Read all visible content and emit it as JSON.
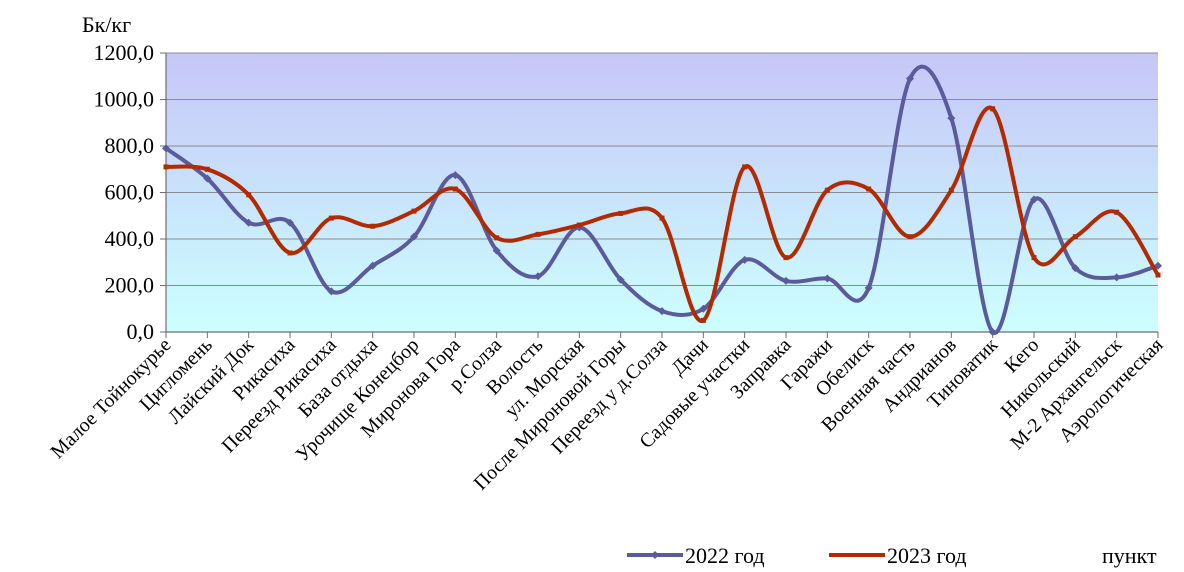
{
  "chart_data": {
    "type": "line",
    "smooth": true,
    "y_unit_label": "Бк/кг",
    "x_unit_label": "пункт",
    "ylim": [
      0,
      1200
    ],
    "yticks": [
      0,
      200,
      400,
      600,
      800,
      1000,
      1200
    ],
    "ytick_labels": [
      "0,0",
      "200,0",
      "400,0",
      "600,0",
      "800,0",
      "1000,0",
      "1200,0"
    ],
    "grid": true,
    "legend_position": "bottom",
    "background_gradient": [
      "#c6c6f7",
      "#ccffff"
    ],
    "categories": [
      "Малое Тойнокурье",
      "Цигломень",
      "Лайский Док",
      "Рикасиха",
      "Переезд Рикасиха",
      "База отдыха",
      "Урочище Конецбор",
      "Миронова Гора",
      "р.Солза",
      "Волость",
      "ул. Морская",
      "После Мироновой Горы",
      "Переезд у д.Солза",
      "Дачи",
      "Садовые участки",
      "Заправка",
      "Гаражи",
      "Обелиск",
      "Военная часть",
      "Андрианов",
      "Тиноватик",
      "Кего",
      "Никольский",
      "М-2 Архангельск",
      "Аэрологическая"
    ],
    "series": [
      {
        "name": "2022 год",
        "color": "#5b5b9b",
        "values": [
          790,
          660,
          470,
          470,
          175,
          285,
          410,
          675,
          350,
          240,
          450,
          225,
          90,
          100,
          310,
          220,
          230,
          190,
          1090,
          920,
          0,
          570,
          275,
          235,
          285
        ]
      },
      {
        "name": "2023 год",
        "color": "#b22a00",
        "values": [
          710,
          700,
          590,
          340,
          490,
          455,
          520,
          615,
          405,
          420,
          460,
          510,
          490,
          50,
          710,
          320,
          610,
          615,
          410,
          610,
          960,
          320,
          410,
          515,
          245
        ]
      }
    ]
  }
}
